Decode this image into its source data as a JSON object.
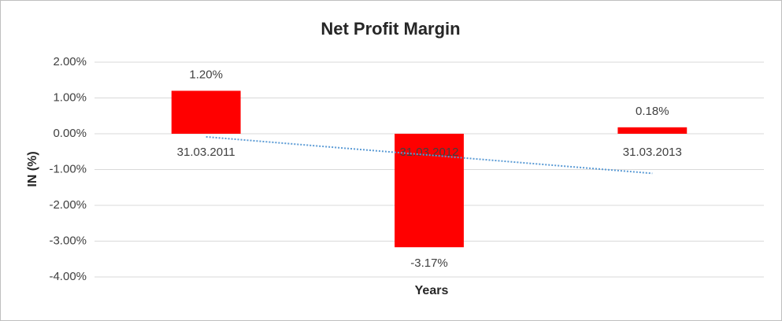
{
  "chart_data": {
    "type": "bar",
    "title": "Net Profit Margin",
    "x_label": "Years",
    "y_label": "IN (%)",
    "categories": [
      "31.03.2011",
      "31.03.2012",
      "31.03.2013"
    ],
    "values": [
      1.2,
      -3.17,
      0.18
    ],
    "value_labels": [
      "1.20%",
      "-3.17%",
      "0.18%"
    ],
    "color": "#ff0000",
    "ylim": [
      -4,
      2
    ],
    "yticks": [
      {
        "value": -4,
        "label": "-4.00%"
      },
      {
        "value": -3,
        "label": "-3.00%"
      },
      {
        "value": -2,
        "label": "-2.00%"
      },
      {
        "value": -1,
        "label": "-1.00%"
      },
      {
        "value": 0,
        "label": "0.00%"
      },
      {
        "value": 1,
        "label": "1.00%"
      },
      {
        "value": 2,
        "label": "2.00%"
      }
    ],
    "grid": true,
    "trendline": {
      "type": "linear",
      "color": "#5b9bd5",
      "style": "dotted"
    }
  }
}
